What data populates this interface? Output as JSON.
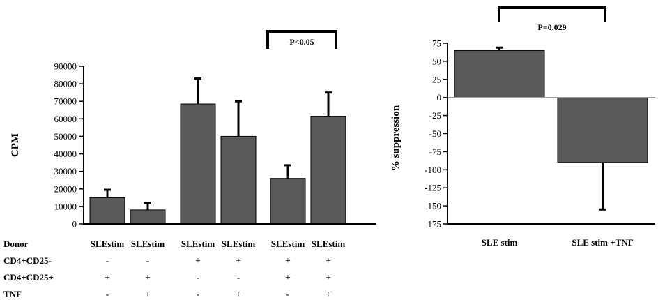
{
  "chart_data": [
    {
      "type": "bar",
      "ylabel": "CPM",
      "ylim": [
        0,
        90000
      ],
      "yticks": [
        "0",
        "10000",
        "20000",
        "30000",
        "40000",
        "50000",
        "60000",
        "70000",
        "80000",
        "90000"
      ],
      "categories": [
        "SLEstim",
        "SLEstim",
        "SLEstim",
        "SLEstim",
        "SLEstim",
        "SLEstim"
      ],
      "values": [
        15000,
        8000,
        68500,
        50000,
        26000,
        61500
      ],
      "errors": [
        4500,
        4000,
        14500,
        20000,
        7500,
        13500
      ],
      "bar_color": "#595959",
      "significance": {
        "label": "P<0.05",
        "between": [
          4,
          5
        ]
      },
      "condition_rows": [
        {
          "label": "Donor",
          "marks": []
        },
        {
          "label": "CD4+CD25-",
          "marks": [
            "-",
            "-",
            "+",
            "+",
            "+",
            "+"
          ]
        },
        {
          "label": "CD4+CD25+",
          "marks": [
            "+",
            "+",
            "-",
            "-",
            "+",
            "+"
          ]
        },
        {
          "label": "TNF",
          "marks": [
            "-",
            "+",
            "-",
            "+",
            "-",
            "+"
          ]
        }
      ]
    },
    {
      "type": "bar",
      "ylabel": "% suppression",
      "ylim": [
        -175,
        75
      ],
      "yticks": [
        "75",
        "50",
        "25",
        "0",
        "-25",
        "-50",
        "-75",
        "-100",
        "-125",
        "-150",
        "-175"
      ],
      "categories": [
        "SLE stim",
        "SLE stim +TNF"
      ],
      "values": [
        65,
        -90
      ],
      "errors": [
        4,
        65
      ],
      "bar_color": "#595959",
      "significance": {
        "label": "P=0.029",
        "between": [
          0,
          1
        ]
      }
    }
  ]
}
